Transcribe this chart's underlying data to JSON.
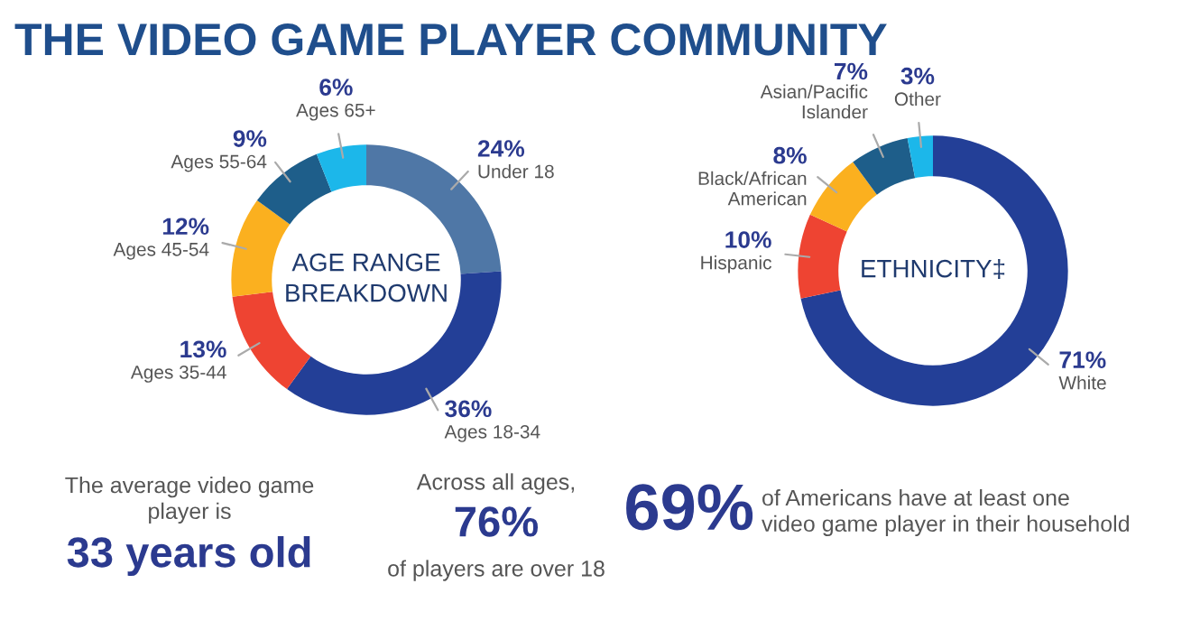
{
  "chart_data": [
    {
      "type": "donut",
      "title": "AGE RANGE BREAKDOWN",
      "categories": [
        "Under 18",
        "Ages 18-34",
        "Ages 35-44",
        "Ages 45-54",
        "Ages 55-64",
        "Ages 65+"
      ],
      "values": [
        24,
        36,
        13,
        12,
        9,
        6
      ],
      "value_labels": [
        "24%",
        "36%",
        "13%",
        "12%",
        "9%",
        "6%"
      ],
      "colors": [
        "#4f77a6",
        "#233f97",
        "#ee4432",
        "#fbb01f",
        "#1e5e8a",
        "#1cb7ea"
      ],
      "annotations": [
        "THE VIDEO GAME PLAYER COMMUNITY",
        "The average video game player is",
        "33 years old",
        "Across all ages,",
        "76%",
        "of players are over 18"
      ]
    },
    {
      "type": "donut",
      "title": "ETHNICITY‡",
      "categories": [
        "White",
        "Hispanic",
        "Black/African American",
        "Asian/Pacific Islander",
        "Other"
      ],
      "values": [
        71,
        10,
        8,
        7,
        3
      ],
      "value_labels": [
        "71%",
        "10%",
        "8%",
        "7%",
        "3%"
      ],
      "colors": [
        "#233f97",
        "#ee4432",
        "#fbb01f",
        "#1e5e8a",
        "#1cb7ea"
      ],
      "annotations": [
        "69%",
        "of Americans have at least one video game player in their household"
      ]
    }
  ]
}
